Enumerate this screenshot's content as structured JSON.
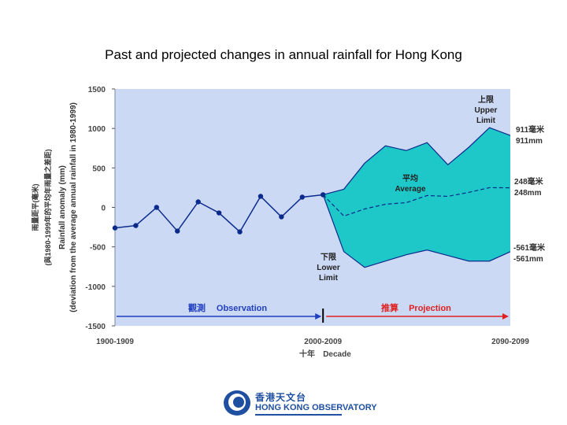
{
  "title": "Past and projected changes in annual rainfall for Hong Kong",
  "logo": {
    "chinese": "香港天文台",
    "english": "HONG KONG OBSERVATORY"
  },
  "chart_data": {
    "type": "area",
    "ylabel_en": "Rainfall anomaly (mm)",
    "ylabel_en2": "(deviation from the average annual rainfall in 1980-1999)",
    "ylabel_zh": "雨量距平(毫米)",
    "ylabel_zh2": "(與1980-1999年的平均年雨量之差距)",
    "xlabel_zh": "十年",
    "xlabel_en": "Decade",
    "ylim": [
      -1500,
      1500
    ],
    "yticks": [
      1500,
      1000,
      500,
      0,
      -500,
      -1000,
      -1500
    ],
    "ytick_labels": [
      "1500",
      "1000",
      "500",
      "0",
      "-500",
      "-1000",
      "-1500"
    ],
    "xtick_labels": [
      "1900-1909",
      "2000-2009",
      "2090-2099"
    ],
    "colors": {
      "plot_bg": "#ccd9f5",
      "band_fill": "#1ec8c8",
      "band_edge": "#0a2a8c",
      "line": "#0a2a8c",
      "observation": "#1f3fbf",
      "projection": "#e02020"
    },
    "observation": {
      "zh": "觀測",
      "en": "Observation",
      "x": [
        1900,
        1910,
        1920,
        1930,
        1940,
        1950,
        1960,
        1970,
        1980,
        1990,
        2000
      ],
      "y": [
        -260,
        -230,
        0,
        -300,
        70,
        -70,
        -310,
        140,
        -120,
        130,
        160
      ]
    },
    "projection": {
      "zh": "推算",
      "en": "Projection",
      "x": [
        2000,
        2010,
        2020,
        2030,
        2040,
        2050,
        2060,
        2070,
        2080,
        2090
      ],
      "upper": [
        160,
        230,
        560,
        780,
        720,
        820,
        540,
        760,
        1010,
        911
      ],
      "average": [
        160,
        -110,
        -20,
        40,
        60,
        150,
        140,
        190,
        250,
        248
      ],
      "lower": [
        160,
        -560,
        -760,
        -680,
        -600,
        -540,
        -610,
        -680,
        -680,
        -561
      ]
    },
    "annotations": {
      "upper_zh": "上限",
      "upper_en1": "Upper",
      "upper_en2": "Limit",
      "average_zh": "平均",
      "average_en": "Average",
      "lower_zh": "下限",
      "lower_en1": "Lower",
      "lower_en2": "Limit"
    },
    "end_values": {
      "upper_zh": "911毫米",
      "upper_en": "911mm",
      "average_zh": "248毫米",
      "average_en": "248mm",
      "lower_zh": "-561毫米",
      "lower_en": "-561mm"
    }
  }
}
